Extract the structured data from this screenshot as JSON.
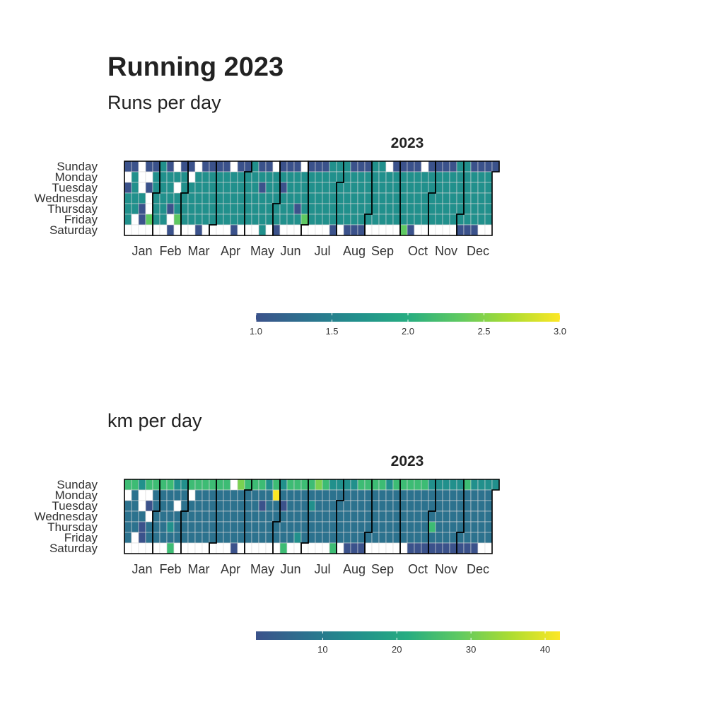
{
  "title": "Running 2023",
  "chart_data": [
    {
      "type": "heatmap",
      "subtitle": "Runs per day",
      "panel_title": "2023",
      "year": 2023,
      "rows": [
        "Sunday",
        "Monday",
        "Tuesday",
        "Wednesday",
        "Thursday",
        "Friday",
        "Saturday"
      ],
      "months": [
        "Jan",
        "Feb",
        "Mar",
        "Apr",
        "May",
        "Jun",
        "Jul",
        "Aug",
        "Sep",
        "Oct",
        "Nov",
        "Dec"
      ],
      "scale": {
        "min": 1.0,
        "max": 3.0,
        "ticks": [
          "1.0",
          "1.5",
          "2.0",
          "2.5",
          "3.0"
        ]
      },
      "colors": [
        "#3b528b",
        "#21908c",
        "#5ec962",
        "#fde725"
      ],
      "week_rows": [
        "1 1 0 1 1 2 1 0 1 1 0 1 1 1 1 0 1 1 2 1 1 0 1 1 1 0 1 1 1 2 2 2 1 1 1 2 2 0 1 1 1 1 0 1 1 1 1 2 2 1 1 1 1 2 1 1 2 1 1 1 1 1 0 0 0 1 1 1 1 1",
        "0 2 0 0 2 2 2 2 2 0 2 2 2 2 2 2 2 2 2 2 2 2 2 2 2 2 2 2 2 2 2 2 2 2 2 2 2 2 2 2 2 2 2 2 2 2 2 2 2 2 2 2 2 2 2 2 2 2 2 2 2 2 2 2 2 2 2 2 2 2",
        "1 2 0 1 2 2 2 0 2 2 2 2 2 2 2 2 2 2 2 1 2 2 1 2 2 2 2 2 2 2 2 2 2 2 2 2 2 2 2 2 2 2 2 2 2 2 2 2 2 2 2 2 2 2 2 2 2 2 2 2 2 2 2 2 2 2 2 2 2 2",
        "2 2 2 0 2 2 2 2 2 2 2 2 2 2 2 2 2 2 2 2 2 2 2 2 2 2 2 2 2 2 2 2 2 2 2 2 2 2 2 2 2 2 2 2 2 2 2 2 2 2 2 2 2 2 2 2 2 2 2 2 2 2 2 2 2 2 2 2 2 2",
        "2 2 1 0 2 2 1 2 2 2 2 2 2 2 2 2 2 2 2 2 2 2 2 2 1 2 2 2 2 2 2 2 2 2 2 2 2 2 2 2 2 2 2 2 2 2 2 2 2 2 2 2 2 2 2 2 2 2 2 2 2 2 2 2 2 2 2 2 1 2",
        "2 0 1 3 2 2 0 3 2 2 2 2 2 2 2 2 2 2 2 2 2 2 2 2 2 3 2 2 2 2 2 2 2 2 2 2 2 2 2 2 2 2 2 2 2 2 2 2 2 2 2 2 2 2 2 2 2 2 2 2 2 2 2 2 2 2 2 2 2 1",
        "0 0 0 0 0 0 1 0 0 0 1 0 0 0 0 1 0 0 0 2 0 1 0 0 0 0 0 0 0 1 0 1 1 1 0 0 0 0 0 3 1 0 0 0 0 0 0 1 1 1 0 0 0 0 0 0 0 0 0 0 0 0 1 0 0 0 0 0 0 0"
      ]
    },
    {
      "type": "heatmap",
      "subtitle": "km per day",
      "panel_title": "2023",
      "year": 2023,
      "rows": [
        "Sunday",
        "Monday",
        "Tuesday",
        "Wednesday",
        "Thursday",
        "Friday",
        "Saturday"
      ],
      "months": [
        "Jan",
        "Feb",
        "Mar",
        "Apr",
        "May",
        "Jun",
        "Jul",
        "Aug",
        "Sep",
        "Oct",
        "Nov",
        "Dec"
      ],
      "scale": {
        "min": 1,
        "max": 42,
        "ticks": [
          "10",
          "20",
          "30",
          "40"
        ],
        "tick_values": [
          10,
          20,
          30,
          40
        ]
      },
      "colors": [
        "#3b528b",
        "#2c728e",
        "#21908c",
        "#3dbc74",
        "#7ad151",
        "#fde725"
      ],
      "week_rows": [
        "4 4 3 4 4 4 4 3 3 4 4 4 4 4 4 0 5 4 4 4 3 4 3 4 4 4 4 5 4 3 3 3 3 4 4 4 4 3 4 4 4 4 4 3 3 3 3 3 4 3 3 3 3 3 3 3 3 0 3 3 4 4 4 3 3 3 3 4 4 4",
        "0 2 0 0 2 2 2 2 2 0 2 2 2 2 2 2 2 2 2 2 2 6 2 2 2 2 2 2 2 2 2 2 2 2 2 2 2 2 2 2 2 2 2 2 2 2 2 2 2 2 2 2 2 2 2 2 2 2 2 2 2 2 2 2 2 2 2 2 2 2",
        "2 2 0 1 2 2 2 0 2 2 2 2 2 2 2 2 2 2 2 1 2 2 1 2 2 2 3 2 2 2 2 2 2 2 2 2 2 2 2 2 2 2 2 2 2 2 2 2 2 2 2 2 2 2 2 2 2 2 2 2 2 2 2 2 2 2 2 2 2 2",
        "2 2 2 0 2 2 2 2 2 2 2 2 2 2 2 2 2 2 2 2 2 2 2 2 2 2 2 2 2 2 2 2 2 2 2 2 2 2 2 2 2 2 2 2 2 2 2 2 2 2 2 2 2 2 2 2 2 2 2 2 2 2 2 2 2 2 2 2 2 2",
        "2 2 1 2 2 2 3 2 2 2 2 2 2 2 2 2 2 2 2 2 2 2 2 2 2 2 2 2 2 2 2 2 2 2 2 2 2 2 2 2 2 2 2 4 2 2 2 2 2 2 2 2 2 2 2 2 2 2 2 2 2 2 2 2 2 2 2 2 2 2",
        "2 0 1 2 2 2 2 2 2 2 2 2 2 2 2 2 2 2 2 2 2 2 2 2 3 2 2 2 2 2 2 2 2 2 2 2 2 2 2 2 2 2 2 2 2 2 2 2 2 2 2 2 2 2 2 2 2 2 2 2 2 2 2 2 2 2 2 2 2 2",
        "0 0 0 0 0 0 4 0 0 0 0 0 0 0 0 1 0 0 0 0 0 0 4 0 0 0 0 0 0 4 0 1 1 1 0 0 0 0 0 0 1 1 1 1 1 1 1 1 1 1 0 0 0 0 0 0 0 0 0 0 0 0 4 0 0 0 0 0 0 0"
      ]
    }
  ]
}
